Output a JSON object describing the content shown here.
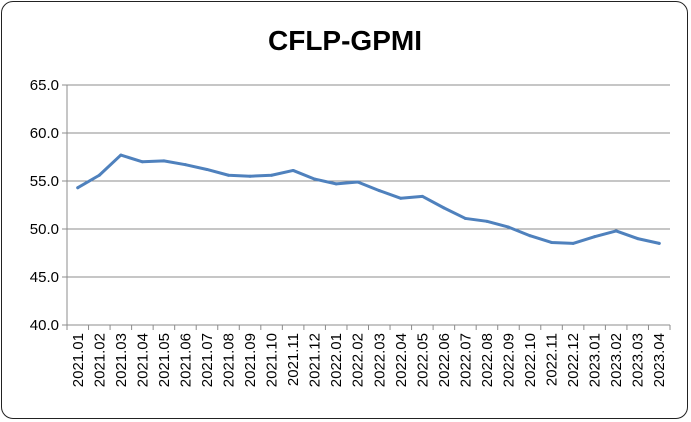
{
  "chart_data": {
    "type": "line",
    "title": "CFLP-GPMI",
    "xlabel": "",
    "ylabel": "",
    "ylim": [
      40.0,
      65.0
    ],
    "yticks": [
      "40.0",
      "45.0",
      "50.0",
      "55.0",
      "60.0",
      "65.0"
    ],
    "grid": true,
    "legend": "none",
    "color": "#4f81bd",
    "categories": [
      "2021.01",
      "2021.02",
      "2021.03",
      "2021.04",
      "2021.05",
      "2021.06",
      "2021.07",
      "2021.08",
      "2021.09",
      "2021.10",
      "2021.11",
      "2021.12",
      "2022.01",
      "2022.02",
      "2022.03",
      "2022.04",
      "2022.05",
      "2022.06",
      "2022.07",
      "2022.08",
      "2022.09",
      "2022.10",
      "2022.11",
      "2022.12",
      "2023.01",
      "2023.02",
      "2023.03",
      "2023.04"
    ],
    "series": [
      {
        "values": [
          54.3,
          55.6,
          57.7,
          57.0,
          57.1,
          56.7,
          56.2,
          55.6,
          55.5,
          55.6,
          56.1,
          55.2,
          54.7,
          54.9,
          54.0,
          53.2,
          53.4,
          52.2,
          51.1,
          50.8,
          50.2,
          49.3,
          48.6,
          48.5,
          49.2,
          49.8,
          49.0,
          48.5
        ]
      }
    ]
  }
}
